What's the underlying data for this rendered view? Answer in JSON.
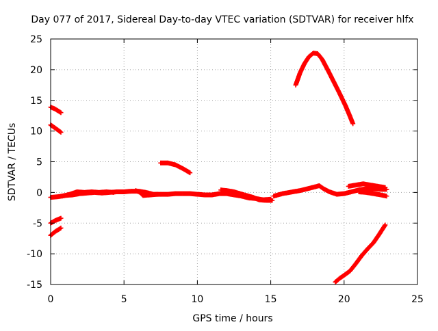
{
  "chart_data": {
    "type": "scatter",
    "title": "Day 077 of 2017, Sidereal Day-to-day VTEC variation (SDTVAR) for receiver hlfx",
    "xlabel": "GPS time / hours",
    "ylabel": "SDTVAR / TECUs",
    "xlim": [
      0,
      25
    ],
    "ylim": [
      -15,
      25
    ],
    "xticks": [
      0,
      5,
      10,
      15,
      20,
      25
    ],
    "yticks": [
      -15,
      -10,
      -5,
      0,
      5,
      10,
      15,
      20,
      25
    ],
    "grid": true,
    "marker": "plus",
    "color": "#ff0000",
    "series": [
      {
        "points": [
          [
            0.0,
            13.9
          ],
          [
            0.3,
            13.6
          ],
          [
            0.7,
            13.0
          ]
        ]
      },
      {
        "points": [
          [
            0.0,
            11.0
          ],
          [
            0.3,
            10.5
          ],
          [
            0.7,
            9.8
          ]
        ]
      },
      {
        "points": [
          [
            0.0,
            -5.0
          ],
          [
            0.3,
            -4.6
          ],
          [
            0.7,
            -4.2
          ]
        ]
      },
      {
        "points": [
          [
            0.0,
            -7.0
          ],
          [
            0.3,
            -6.4
          ],
          [
            0.7,
            -5.8
          ]
        ]
      },
      {
        "points": [
          [
            0.0,
            -0.8
          ],
          [
            0.5,
            -0.7
          ],
          [
            1.0,
            -0.5
          ],
          [
            1.5,
            -0.4
          ],
          [
            2.0,
            -0.2
          ],
          [
            2.5,
            -0.1
          ],
          [
            3.0,
            0.0
          ],
          [
            3.5,
            -0.1
          ],
          [
            4.0,
            0.0
          ],
          [
            4.5,
            0.1
          ],
          [
            5.0,
            0.1
          ],
          [
            5.5,
            0.2
          ],
          [
            6.0,
            0.2
          ],
          [
            6.5,
            0.0
          ],
          [
            7.0,
            -0.3
          ],
          [
            7.5,
            -0.3
          ],
          [
            8.0,
            -0.3
          ],
          [
            8.5,
            -0.2
          ],
          [
            9.0,
            -0.2
          ],
          [
            9.5,
            -0.2
          ],
          [
            10.0,
            -0.3
          ],
          [
            10.5,
            -0.4
          ],
          [
            11.0,
            -0.4
          ],
          [
            11.5,
            -0.2
          ],
          [
            12.0,
            -0.2
          ],
          [
            12.5,
            -0.4
          ],
          [
            13.0,
            -0.6
          ],
          [
            13.5,
            -0.9
          ],
          [
            14.0,
            -1.0
          ],
          [
            14.5,
            -1.2
          ],
          [
            15.0,
            -1.1
          ]
        ]
      },
      {
        "points": [
          [
            0.8,
            -0.6
          ],
          [
            1.3,
            -0.3
          ],
          [
            1.8,
            0.1
          ],
          [
            2.3,
            0.0
          ],
          [
            2.8,
            0.1
          ],
          [
            3.3,
            0.0
          ],
          [
            3.8,
            0.1
          ],
          [
            4.3,
            0.0
          ]
        ]
      },
      {
        "points": [
          [
            5.8,
            0.3
          ],
          [
            6.1,
            0.0
          ],
          [
            6.3,
            -0.5
          ],
          [
            6.8,
            -0.4
          ],
          [
            7.3,
            -0.3
          ]
        ]
      },
      {
        "points": [
          [
            11.6,
            0.4
          ],
          [
            12.0,
            0.3
          ],
          [
            12.5,
            0.1
          ],
          [
            13.2,
            -0.4
          ],
          [
            13.8,
            -0.8
          ],
          [
            14.2,
            -1.2
          ],
          [
            14.7,
            -1.3
          ],
          [
            15.1,
            -1.3
          ]
        ]
      },
      {
        "points": [
          [
            15.2,
            -0.6
          ],
          [
            15.8,
            -0.2
          ],
          [
            16.5,
            0.1
          ],
          [
            17.0,
            0.3
          ],
          [
            17.5,
            0.6
          ],
          [
            18.0,
            0.9
          ],
          [
            18.3,
            1.1
          ],
          [
            18.6,
            0.6
          ],
          [
            19.0,
            0.1
          ],
          [
            19.5,
            -0.3
          ],
          [
            20.0,
            -0.2
          ],
          [
            20.5,
            0.1
          ],
          [
            21.0,
            0.4
          ],
          [
            21.5,
            0.6
          ],
          [
            22.0,
            0.6
          ],
          [
            22.5,
            0.5
          ],
          [
            22.9,
            0.5
          ]
        ]
      },
      {
        "points": [
          [
            20.3,
            1.0
          ],
          [
            20.8,
            1.2
          ],
          [
            21.3,
            1.4
          ],
          [
            21.8,
            1.2
          ],
          [
            22.3,
            1.0
          ],
          [
            22.8,
            0.8
          ]
        ]
      },
      {
        "points": [
          [
            21.0,
            0.1
          ],
          [
            21.5,
            0.0
          ],
          [
            22.0,
            -0.2
          ],
          [
            22.5,
            -0.4
          ],
          [
            22.9,
            -0.6
          ]
        ]
      },
      {
        "points": [
          [
            7.5,
            4.8
          ],
          [
            8.0,
            4.8
          ],
          [
            8.5,
            4.5
          ],
          [
            9.0,
            3.9
          ],
          [
            9.5,
            3.2
          ]
        ]
      },
      {
        "points": [
          [
            16.7,
            17.5
          ],
          [
            17.0,
            19.5
          ],
          [
            17.3,
            21.0
          ],
          [
            17.6,
            22.1
          ],
          [
            17.9,
            22.7
          ],
          [
            18.2,
            22.6
          ],
          [
            18.5,
            21.7
          ],
          [
            18.9,
            19.9
          ],
          [
            19.3,
            18.0
          ],
          [
            19.7,
            16.1
          ],
          [
            20.1,
            14.1
          ],
          [
            20.4,
            12.4
          ],
          [
            20.6,
            11.2
          ]
        ]
      },
      {
        "points": [
          [
            19.4,
            -14.6
          ],
          [
            19.7,
            -14.0
          ],
          [
            20.0,
            -13.5
          ],
          [
            20.4,
            -12.8
          ],
          [
            20.8,
            -11.6
          ],
          [
            21.2,
            -10.3
          ],
          [
            21.6,
            -9.2
          ],
          [
            22.0,
            -8.2
          ],
          [
            22.4,
            -6.8
          ],
          [
            22.8,
            -5.3
          ]
        ]
      }
    ]
  }
}
